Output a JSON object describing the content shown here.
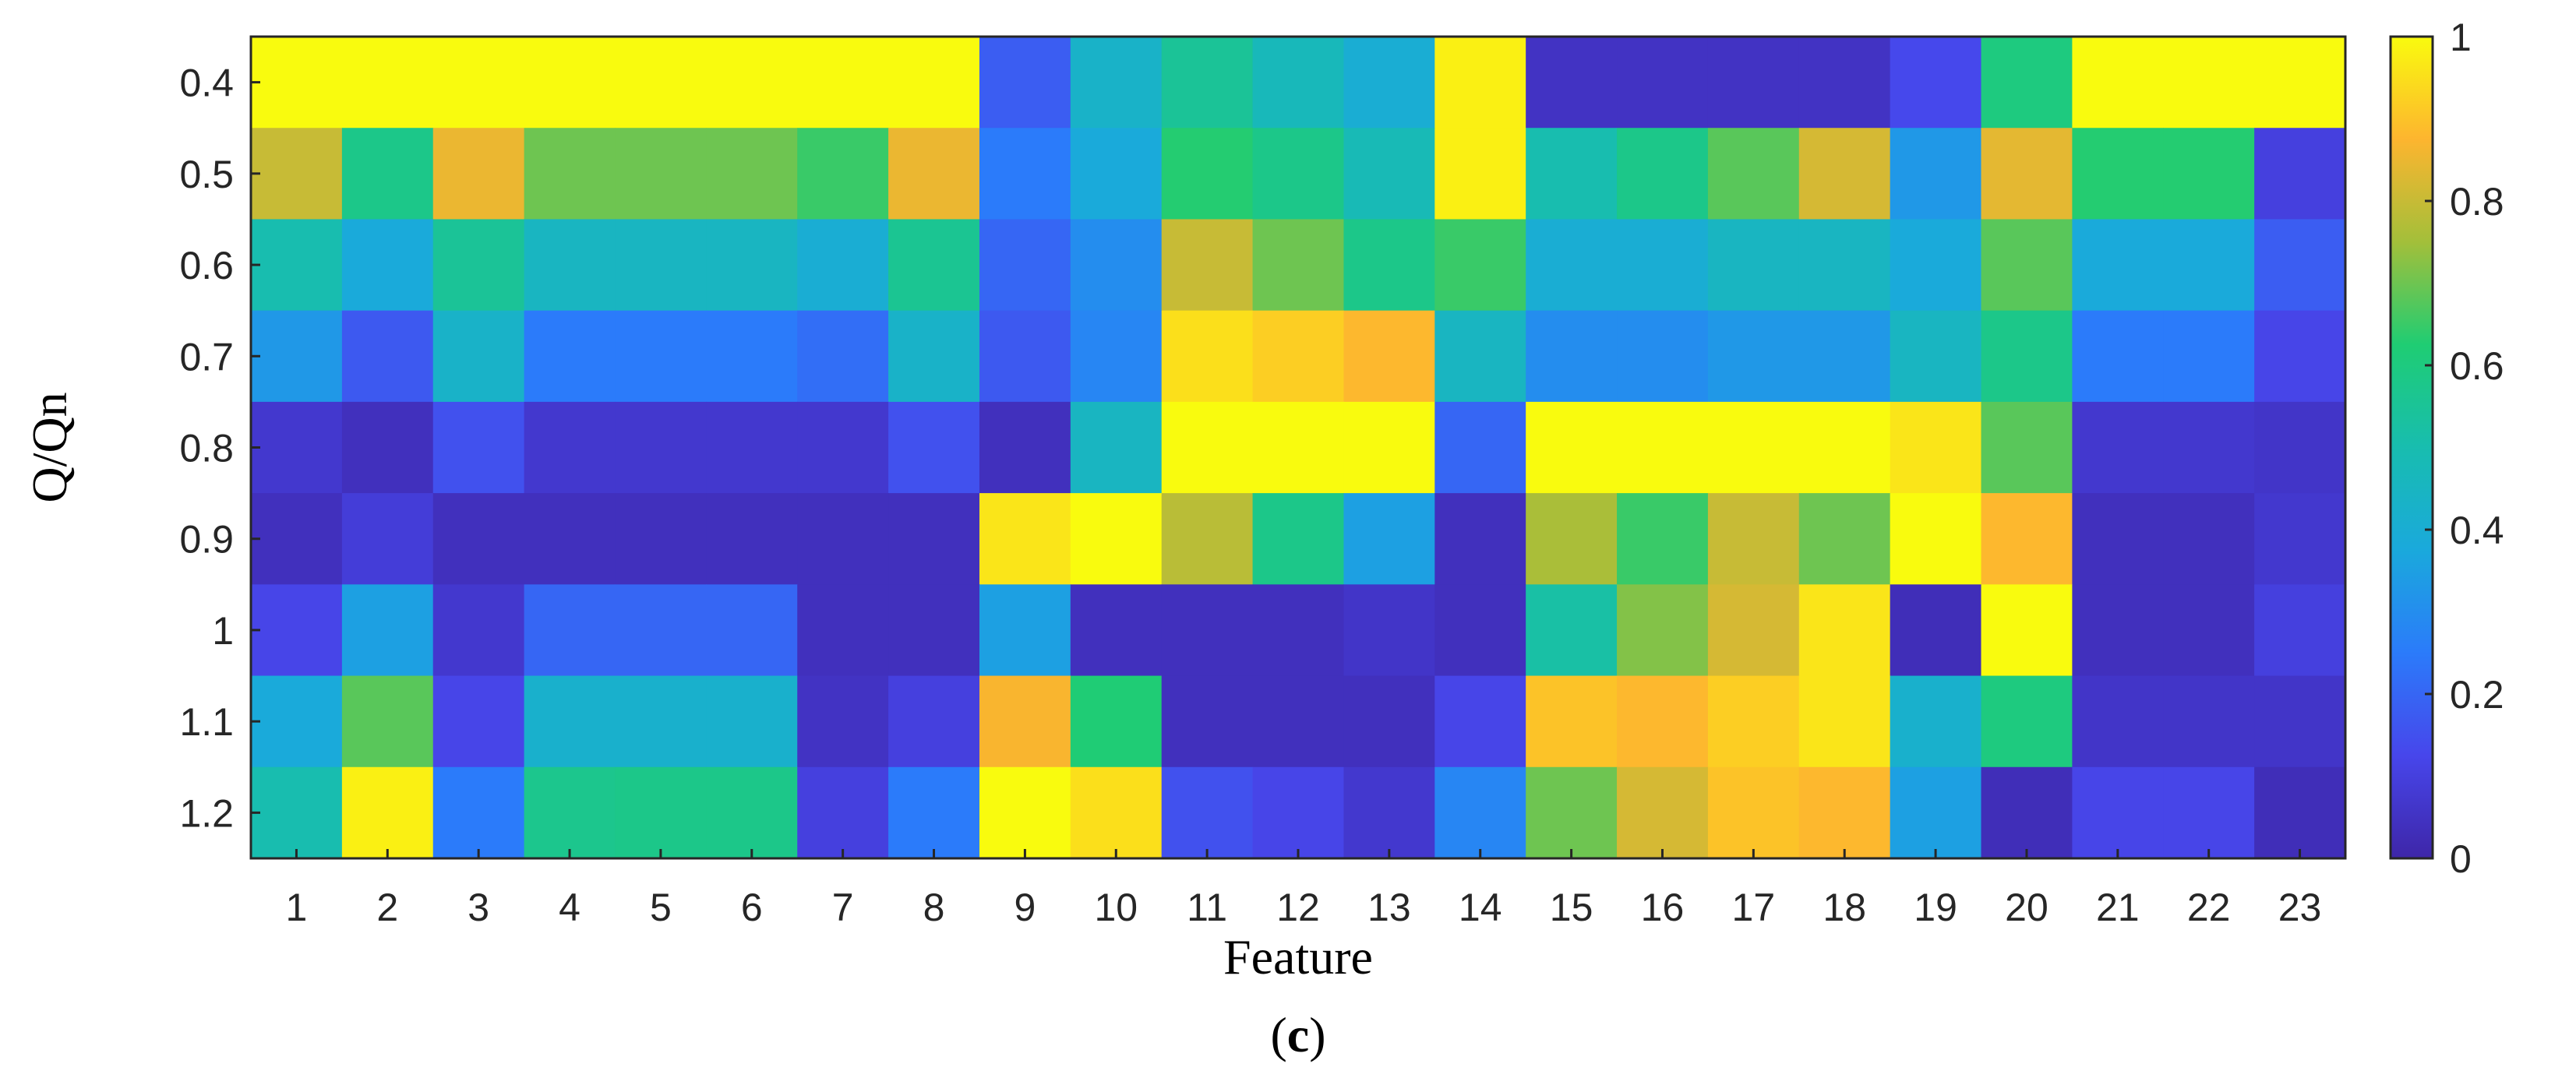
{
  "chart_data": {
    "type": "heatmap",
    "title": "",
    "xlabel": "Feature",
    "ylabel": "Q/Qn",
    "panel_label": "c",
    "x_categories": [
      "1",
      "2",
      "3",
      "4",
      "5",
      "6",
      "7",
      "8",
      "9",
      "10",
      "11",
      "12",
      "13",
      "14",
      "15",
      "16",
      "17",
      "18",
      "19",
      "20",
      "21",
      "22",
      "23"
    ],
    "y_categories": [
      "0.4",
      "0.5",
      "0.6",
      "0.7",
      "0.8",
      "0.9",
      "1",
      "1.1",
      "1.2"
    ],
    "values": [
      [
        1.0,
        1.0,
        1.0,
        1.0,
        1.0,
        1.0,
        1.0,
        1.0,
        0.18,
        0.43,
        0.55,
        0.47,
        0.4,
        0.98,
        0.05,
        0.05,
        0.05,
        0.05,
        0.13,
        0.6,
        1.0,
        1.0,
        1.0
      ],
      [
        0.8,
        0.58,
        0.85,
        0.7,
        0.7,
        0.7,
        0.65,
        0.85,
        0.25,
        0.38,
        0.63,
        0.58,
        0.48,
        0.98,
        0.5,
        0.58,
        0.68,
        0.82,
        0.33,
        0.84,
        0.63,
        0.63,
        0.1
      ],
      [
        0.5,
        0.38,
        0.55,
        0.45,
        0.45,
        0.45,
        0.4,
        0.56,
        0.2,
        0.3,
        0.8,
        0.7,
        0.58,
        0.65,
        0.4,
        0.4,
        0.45,
        0.45,
        0.38,
        0.68,
        0.38,
        0.38,
        0.18
      ],
      [
        0.33,
        0.17,
        0.43,
        0.25,
        0.25,
        0.25,
        0.22,
        0.43,
        0.17,
        0.28,
        0.95,
        0.92,
        0.88,
        0.45,
        0.3,
        0.3,
        0.33,
        0.33,
        0.45,
        0.58,
        0.25,
        0.25,
        0.12
      ],
      [
        0.07,
        0.04,
        0.15,
        0.07,
        0.07,
        0.07,
        0.07,
        0.15,
        0.04,
        0.45,
        1.0,
        1.0,
        1.0,
        0.2,
        1.0,
        1.0,
        1.0,
        1.0,
        0.96,
        0.68,
        0.07,
        0.07,
        0.06
      ],
      [
        0.04,
        0.09,
        0.04,
        0.04,
        0.04,
        0.04,
        0.04,
        0.04,
        0.96,
        1.0,
        0.78,
        0.58,
        0.35,
        0.04,
        0.76,
        0.65,
        0.8,
        0.7,
        1.0,
        0.88,
        0.04,
        0.04,
        0.07
      ],
      [
        0.12,
        0.35,
        0.07,
        0.2,
        0.2,
        0.2,
        0.04,
        0.04,
        0.35,
        0.04,
        0.04,
        0.04,
        0.06,
        0.04,
        0.52,
        0.72,
        0.82,
        0.96,
        0.03,
        1.0,
        0.04,
        0.04,
        0.1
      ],
      [
        0.38,
        0.68,
        0.12,
        0.42,
        0.42,
        0.42,
        0.05,
        0.1,
        0.87,
        0.62,
        0.04,
        0.04,
        0.04,
        0.12,
        0.9,
        0.88,
        0.92,
        0.96,
        0.42,
        0.6,
        0.06,
        0.06,
        0.06
      ],
      [
        0.5,
        0.98,
        0.25,
        0.57,
        0.58,
        0.58,
        0.1,
        0.25,
        1.0,
        0.95,
        0.15,
        0.12,
        0.07,
        0.28,
        0.7,
        0.82,
        0.9,
        0.88,
        0.35,
        0.03,
        0.12,
        0.12,
        0.03
      ]
    ],
    "colorbar": {
      "range": [
        0,
        1
      ],
      "ticks": [
        "0",
        "0.2",
        "0.4",
        "0.6",
        "0.8",
        "1"
      ]
    },
    "colormap": "parula",
    "grid": false
  }
}
